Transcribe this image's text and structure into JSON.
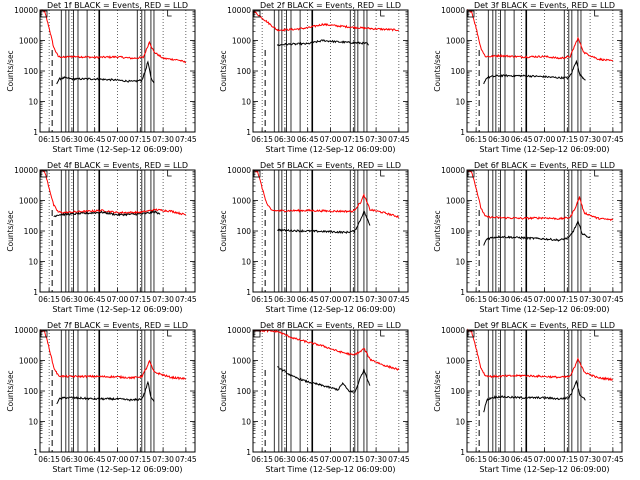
{
  "chart_data": [
    {
      "type": "line",
      "title": "Det 1f BLACK = Events, RED = LLD",
      "ylabel": "Counts/sec",
      "xlabel": "Start Time (12-Sep-12 06:09:00)",
      "x_ticks": [
        "06:15",
        "06:30",
        "06:45",
        "07:00",
        "07:15",
        "07:30",
        "07:45"
      ],
      "y_ticks": [
        "1",
        "10",
        "100",
        "1000",
        "10000"
      ],
      "y_scale": "log",
      "ylim": [
        1,
        10000
      ],
      "xlim": [
        "06:09",
        "07:51"
      ],
      "series": [
        {
          "color": "#ff0000",
          "x": [
            "06:09",
            "06:12",
            "06:15",
            "06:18",
            "06:21",
            "06:25",
            "06:30",
            "06:45",
            "07:00",
            "07:10",
            "07:17",
            "07:19",
            "07:21",
            "07:24",
            "07:30",
            "07:40",
            "07:45"
          ],
          "y": [
            9800,
            9000,
            2600,
            600,
            300,
            280,
            300,
            280,
            290,
            260,
            280,
            500,
            900,
            420,
            260,
            230,
            190
          ]
        },
        {
          "color": "#000000",
          "x": [
            "06:20",
            "06:22",
            "06:25",
            "06:30",
            "06:45",
            "07:00",
            "07:10",
            "07:16",
            "07:18",
            "07:20",
            "07:22",
            "07:24"
          ],
          "y": [
            40,
            55,
            60,
            55,
            55,
            50,
            45,
            50,
            90,
            200,
            60,
            40
          ]
        }
      ]
    },
    {
      "type": "line",
      "title": "Det 2f BLACK = Events, RED = LLD",
      "ylabel": "Counts/sec",
      "xlabel": "Start Time (12-Sep-12 06:09:00)",
      "x_ticks": [
        "06:15",
        "06:30",
        "06:45",
        "07:00",
        "07:15",
        "07:30",
        "07:45"
      ],
      "y_ticks": [
        "1",
        "10",
        "100",
        "1000",
        "10000"
      ],
      "y_scale": "log",
      "ylim": [
        1,
        10000
      ],
      "xlim": [
        "06:09",
        "07:51"
      ],
      "series": [
        {
          "color": "#ff0000",
          "x": [
            "06:09",
            "06:15",
            "06:25",
            "06:35",
            "06:45",
            "06:55",
            "07:05",
            "07:15",
            "07:30",
            "07:45"
          ],
          "y": [
            9500,
            5500,
            2200,
            2300,
            2600,
            3400,
            3000,
            2700,
            2400,
            2200
          ]
        },
        {
          "color": "#000000",
          "x": [
            "06:25",
            "06:30",
            "06:45",
            "06:55",
            "07:05",
            "07:15",
            "07:24",
            "07:25"
          ],
          "y": [
            700,
            750,
            780,
            1000,
            900,
            850,
            800,
            700
          ]
        }
      ]
    },
    {
      "type": "line",
      "title": "Det 3f BLACK = Events, RED = LLD",
      "ylabel": "Counts/sec",
      "xlabel": "Start Time (12-Sep-12 06:09:00)",
      "x_ticks": [
        "06:15",
        "06:30",
        "06:45",
        "07:00",
        "07:15",
        "07:30",
        "07:45"
      ],
      "y_ticks": [
        "1",
        "10",
        "100",
        "1000",
        "10000"
      ],
      "y_scale": "log",
      "ylim": [
        1,
        10000
      ],
      "xlim": [
        "06:09",
        "07:51"
      ],
      "series": [
        {
          "color": "#ff0000",
          "x": [
            "06:09",
            "06:12",
            "06:15",
            "06:18",
            "06:21",
            "06:25",
            "06:30",
            "06:45",
            "07:00",
            "07:10",
            "07:17",
            "07:20",
            "07:22",
            "07:26",
            "07:35",
            "07:45"
          ],
          "y": [
            9800,
            9000,
            2600,
            600,
            300,
            300,
            320,
            290,
            300,
            260,
            300,
            700,
            1200,
            400,
            250,
            210
          ]
        },
        {
          "color": "#000000",
          "x": [
            "06:20",
            "06:22",
            "06:25",
            "06:30",
            "06:45",
            "07:00",
            "07:10",
            "07:16",
            "07:18",
            "07:21",
            "07:23",
            "07:27"
          ],
          "y": [
            40,
            60,
            65,
            70,
            70,
            65,
            60,
            60,
            90,
            220,
            80,
            50
          ]
        }
      ]
    },
    {
      "type": "line",
      "title": "Det 4f BLACK = Events, RED = LLD",
      "ylabel": "Counts/sec",
      "xlabel": "Start Time (12-Sep-12 06:09:00)",
      "x_ticks": [
        "06:15",
        "06:30",
        "06:45",
        "07:00",
        "07:15",
        "07:30",
        "07:45"
      ],
      "y_ticks": [
        "1",
        "10",
        "100",
        "1000",
        "10000"
      ],
      "y_scale": "log",
      "ylim": [
        1,
        10000
      ],
      "xlim": [
        "06:09",
        "07:51"
      ],
      "series": [
        {
          "color": "#ff0000",
          "x": [
            "06:09",
            "06:12",
            "06:15",
            "06:18",
            "06:21",
            "06:25",
            "06:35",
            "06:50",
            "07:00",
            "07:15",
            "07:25",
            "07:35",
            "07:45"
          ],
          "y": [
            9800,
            9000,
            2600,
            700,
            420,
            400,
            430,
            470,
            400,
            410,
            500,
            450,
            340
          ]
        },
        {
          "color": "#000000",
          "x": [
            "06:18",
            "06:21",
            "06:25",
            "06:35",
            "06:50",
            "07:00",
            "07:15",
            "07:25",
            "07:28"
          ],
          "y": [
            300,
            340,
            350,
            370,
            410,
            340,
            360,
            420,
            350
          ]
        }
      ]
    },
    {
      "type": "line",
      "title": "Det 5f BLACK = Events, RED = LLD",
      "ylabel": "Counts/sec",
      "xlabel": "Start Time (12-Sep-12 06:09:00)",
      "x_ticks": [
        "06:15",
        "06:30",
        "06:45",
        "07:00",
        "07:15",
        "07:30",
        "07:45"
      ],
      "y_ticks": [
        "1",
        "10",
        "100",
        "1000",
        "10000"
      ],
      "y_scale": "log",
      "ylim": [
        1,
        10000
      ],
      "xlim": [
        "06:09",
        "07:51"
      ],
      "series": [
        {
          "color": "#ff0000",
          "x": [
            "06:09",
            "06:12",
            "06:15",
            "06:18",
            "06:21",
            "06:25",
            "06:45",
            "07:00",
            "07:15",
            "07:20",
            "07:22",
            "07:26",
            "07:35",
            "07:45"
          ],
          "y": [
            9800,
            9000,
            2600,
            800,
            480,
            460,
            470,
            450,
            440,
            900,
            1500,
            500,
            400,
            290
          ]
        },
        {
          "color": "#000000",
          "x": [
            "06:25",
            "06:30",
            "06:45",
            "07:00",
            "07:10",
            "07:16",
            "07:20",
            "07:22",
            "07:26"
          ],
          "y": [
            110,
            105,
            100,
            95,
            90,
            100,
            250,
            450,
            150
          ]
        }
      ]
    },
    {
      "type": "line",
      "title": "Det 6f BLACK = Events, RED = LLD",
      "ylabel": "Counts/sec",
      "xlabel": "Start Time (12-Sep-12 06:09:00)",
      "x_ticks": [
        "06:15",
        "06:30",
        "06:45",
        "07:00",
        "07:15",
        "07:30",
        "07:45"
      ],
      "y_ticks": [
        "1",
        "10",
        "100",
        "1000",
        "10000"
      ],
      "y_scale": "log",
      "ylim": [
        1,
        10000
      ],
      "xlim": [
        "06:09",
        "07:51"
      ],
      "series": [
        {
          "color": "#ff0000",
          "x": [
            "06:09",
            "06:12",
            "06:15",
            "06:18",
            "06:21",
            "06:25",
            "06:45",
            "07:00",
            "07:10",
            "07:17",
            "07:21",
            "07:23",
            "07:26",
            "07:35",
            "07:45"
          ],
          "y": [
            9800,
            9000,
            2600,
            600,
            300,
            280,
            260,
            270,
            250,
            280,
            700,
            1300,
            400,
            260,
            230
          ]
        },
        {
          "color": "#000000",
          "x": [
            "06:20",
            "06:22",
            "06:25",
            "06:30",
            "06:45",
            "07:00",
            "07:10",
            "07:16",
            "07:19",
            "07:22",
            "07:25",
            "07:30"
          ],
          "y": [
            35,
            55,
            60,
            65,
            60,
            55,
            50,
            60,
            100,
            200,
            80,
            60
          ]
        }
      ]
    },
    {
      "type": "line",
      "title": "Det 7f BLACK = Events, RED = LLD",
      "ylabel": "Counts/sec",
      "xlabel": "Start Time (12-Sep-12 06:09:00)",
      "x_ticks": [
        "06:15",
        "06:30",
        "06:45",
        "07:00",
        "07:15",
        "07:30",
        "07:45"
      ],
      "y_ticks": [
        "1",
        "10",
        "100",
        "1000",
        "10000"
      ],
      "y_scale": "log",
      "ylim": [
        1,
        10000
      ],
      "xlim": [
        "06:09",
        "07:51"
      ],
      "series": [
        {
          "color": "#ff0000",
          "x": [
            "06:09",
            "06:12",
            "06:15",
            "06:18",
            "06:21",
            "06:25",
            "06:45",
            "07:00",
            "07:10",
            "07:16",
            "07:19",
            "07:21",
            "07:24",
            "07:35",
            "07:45"
          ],
          "y": [
            9800,
            9000,
            2600,
            600,
            320,
            300,
            300,
            290,
            270,
            300,
            550,
            950,
            420,
            280,
            250
          ]
        },
        {
          "color": "#000000",
          "x": [
            "06:20",
            "06:22",
            "06:25",
            "06:30",
            "06:45",
            "07:00",
            "07:10",
            "07:16",
            "07:18",
            "07:20",
            "07:22",
            "07:24"
          ],
          "y": [
            40,
            55,
            60,
            60,
            55,
            55,
            50,
            55,
            90,
            200,
            60,
            45
          ]
        }
      ]
    },
    {
      "type": "line",
      "title": "Det 8f BLACK = Events, RED = LLD",
      "ylabel": "Counts/sec",
      "xlabel": "Start Time (12-Sep-12 06:09:00)",
      "x_ticks": [
        "06:15",
        "06:30",
        "06:45",
        "07:00",
        "07:15",
        "07:30",
        "07:45"
      ],
      "y_ticks": [
        "1",
        "10",
        "100",
        "1000",
        "10000"
      ],
      "y_scale": "log",
      "ylim": [
        1,
        10000
      ],
      "xlim": [
        "06:09",
        "07:51"
      ],
      "series": [
        {
          "color": "#ff0000",
          "x": [
            "06:09",
            "06:15",
            "06:25",
            "06:35",
            "06:45",
            "06:55",
            "07:05",
            "07:15",
            "07:20",
            "07:22",
            "07:26",
            "07:35",
            "07:45"
          ],
          "y": [
            9800,
            9500,
            9000,
            5500,
            4000,
            3000,
            2000,
            1500,
            2000,
            2500,
            1100,
            700,
            500
          ]
        },
        {
          "color": "#000000",
          "x": [
            "06:25",
            "06:28",
            "06:35",
            "06:45",
            "06:55",
            "07:05",
            "07:08",
            "07:12",
            "07:16",
            "07:20",
            "07:22",
            "07:26"
          ],
          "y": [
            600,
            500,
            300,
            200,
            150,
            110,
            180,
            100,
            90,
            300,
            500,
            150
          ]
        }
      ]
    },
    {
      "type": "line",
      "title": "Det 9f BLACK = Events, RED = LLD",
      "ylabel": "Counts/sec",
      "xlabel": "Start Time (12-Sep-12 06:09:00)",
      "x_ticks": [
        "06:15",
        "06:30",
        "06:45",
        "07:00",
        "07:15",
        "07:30",
        "07:45"
      ],
      "y_ticks": [
        "1",
        "10",
        "100",
        "1000",
        "10000"
      ],
      "y_scale": "log",
      "ylim": [
        1,
        10000
      ],
      "xlim": [
        "06:09",
        "07:51"
      ],
      "series": [
        {
          "color": "#ff0000",
          "x": [
            "06:09",
            "06:12",
            "06:15",
            "06:18",
            "06:21",
            "06:25",
            "06:45",
            "07:00",
            "07:10",
            "07:17",
            "07:20",
            "07:22",
            "07:26",
            "07:35",
            "07:45"
          ],
          "y": [
            9800,
            9000,
            2600,
            600,
            320,
            300,
            320,
            300,
            280,
            300,
            650,
            1200,
            420,
            270,
            240
          ]
        },
        {
          "color": "#000000",
          "x": [
            "06:20",
            "06:22",
            "06:25",
            "06:30",
            "06:45",
            "07:00",
            "07:10",
            "07:16",
            "07:18",
            "07:21",
            "07:23",
            "07:27"
          ],
          "y": [
            20,
            50,
            60,
            65,
            60,
            60,
            55,
            60,
            90,
            220,
            80,
            50
          ]
        }
      ]
    }
  ]
}
